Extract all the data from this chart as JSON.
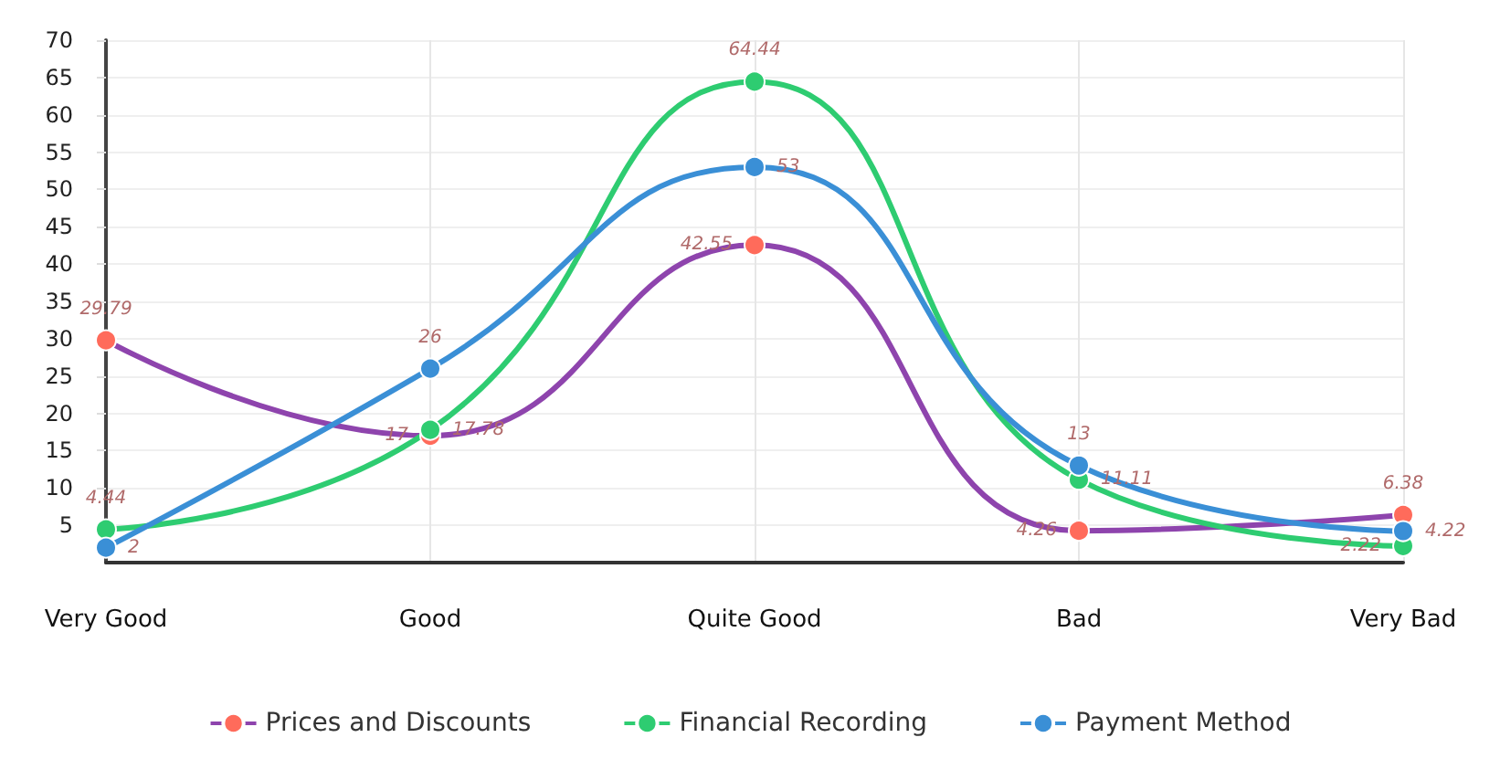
{
  "chart_data": {
    "type": "line",
    "categories": [
      "Very Good",
      "Good",
      "Quite Good",
      "Bad",
      "Very Bad"
    ],
    "series": [
      {
        "name": "Prices and Discounts",
        "color": "#8e44ad",
        "colors": [
          "#ff6b5b",
          "#ff6b5b",
          "#ff6b5b",
          "#ff6b5b",
          "#ff6b5b"
        ],
        "values": [
          29.79,
          17,
          42.55,
          4.26,
          6.38
        ]
      },
      {
        "name": "Financial Recording",
        "color": "#2ecc71",
        "values": [
          4.44,
          17.78,
          64.44,
          11.11,
          2.22
        ]
      },
      {
        "name": "Payment Method",
        "color": "#3a8fd6",
        "values": [
          2,
          26,
          53,
          13,
          4.22
        ]
      }
    ],
    "ylim": [
      0,
      70
    ],
    "yticks": [
      5,
      10,
      15,
      20,
      25,
      30,
      35,
      40,
      45,
      50,
      55,
      60,
      65,
      70
    ],
    "grid": true,
    "legend": "bottom",
    "marker": "circle",
    "line_style": "solid",
    "data_labels": true
  }
}
